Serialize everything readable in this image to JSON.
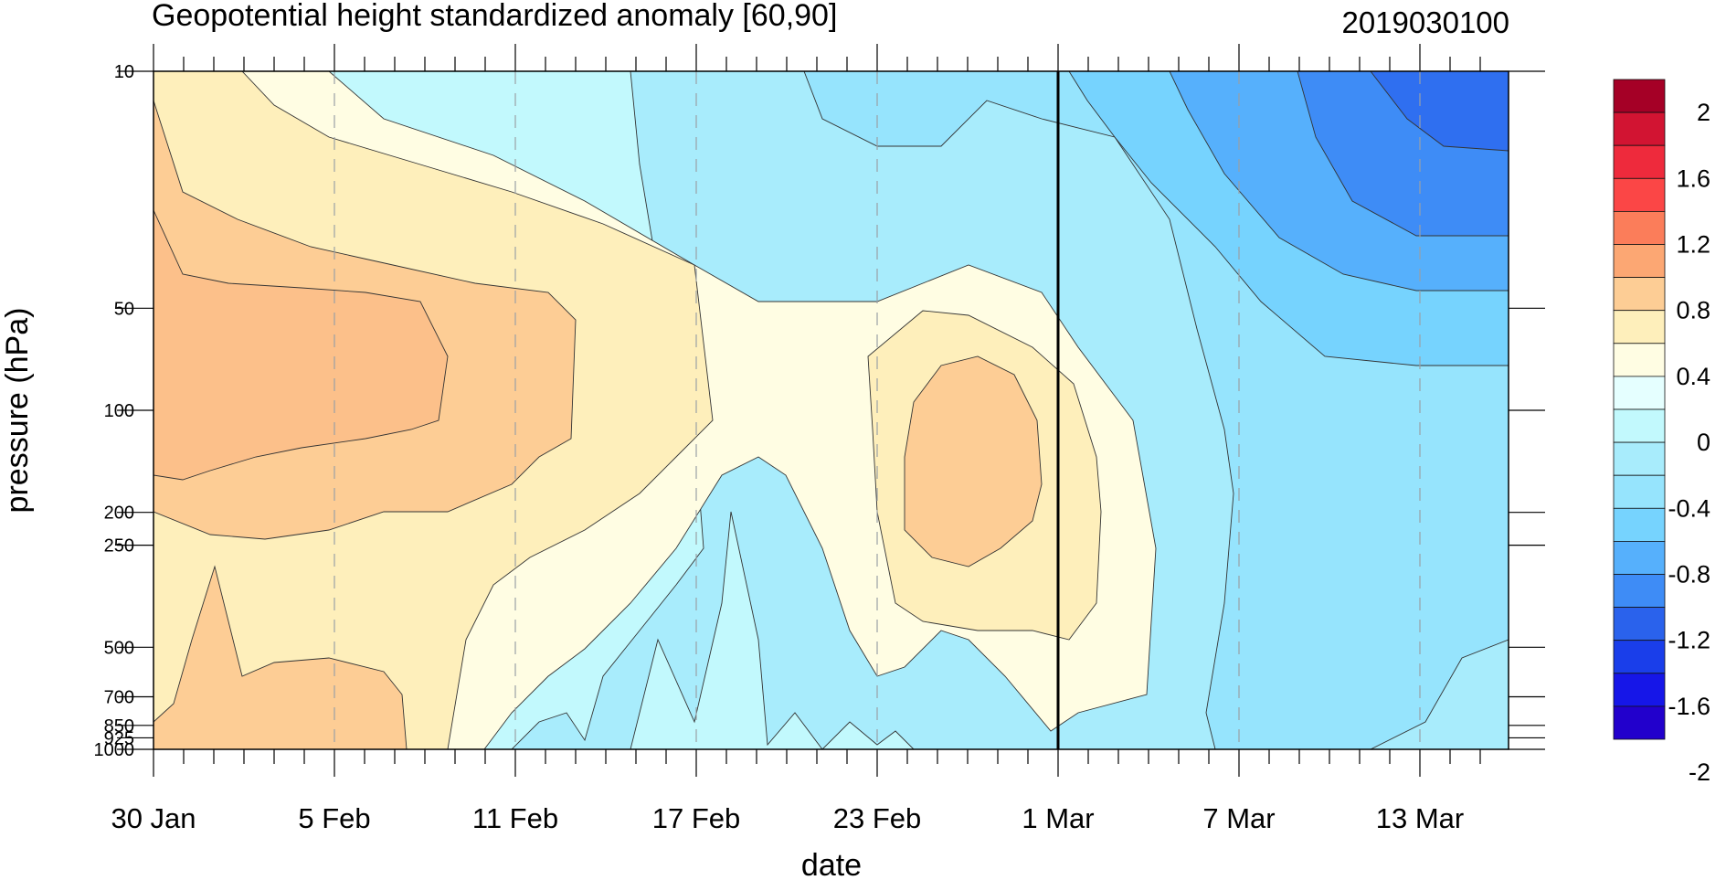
{
  "chart_data": {
    "type": "heatmap",
    "title": "Geopotential height standardized anomaly [60,90]",
    "run_label": "2019030100",
    "xlabel": "date",
    "ylabel": "pressure (hPa)",
    "x_ticks": [
      "30 Jan",
      "5 Feb",
      "11 Feb",
      "17 Feb",
      "23 Feb",
      "1 Mar",
      "7 Mar",
      "13 Mar"
    ],
    "x_start": "30 Jan",
    "x_end": "15 Mar",
    "y_ticks": [
      "10",
      "50",
      "100",
      "200",
      "250",
      "500",
      "700",
      "850",
      "925",
      "1000"
    ],
    "y_scale": "log",
    "ylim": [
      1000,
      10
    ],
    "colorbar_labels": [
      "2",
      "1.6",
      "1.2",
      "0.8",
      "0.4",
      "0",
      "-0.4",
      "-0.8",
      "-1.2",
      "-1.6",
      "-2"
    ],
    "colorbar_colors": [
      "#a50026",
      "#d21432",
      "#ee2a3c",
      "#fb4646",
      "#fb7d5a",
      "#fca773",
      "#fdcd95",
      "#feefbb",
      "#fffde3",
      "#e5ffff",
      "#c2f9fd",
      "#a8ecfc",
      "#96e4fd",
      "#76d3fe",
      "#56b0fc",
      "#3e8cf6",
      "#2a62ec",
      "#1a3eea",
      "#1616e8",
      "#2200cc"
    ],
    "analysis_line": "1 Mar",
    "features": [
      {
        "name": "positive-early-stratosphere",
        "value": 0.8
      },
      {
        "name": "positive-late-feb-lower",
        "value": 0.8
      },
      {
        "name": "negative-march-upper",
        "value": -1.2
      }
    ]
  }
}
